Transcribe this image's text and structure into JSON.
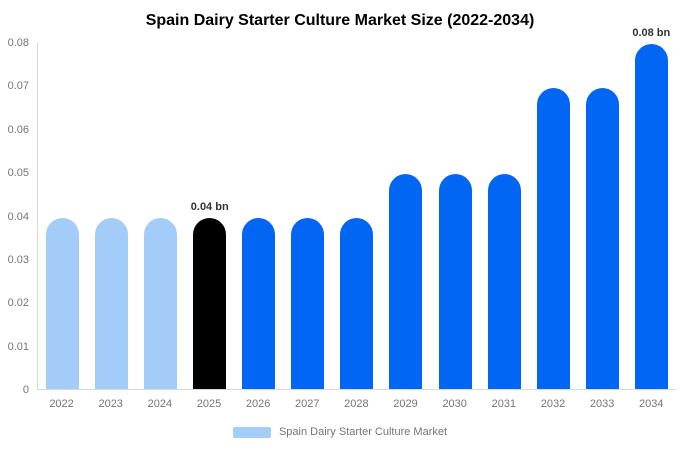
{
  "chart_data": {
    "type": "bar",
    "title": "Spain Dairy Starter Culture Market Size (2022-2034)",
    "categories": [
      "2022",
      "2023",
      "2024",
      "2025",
      "2026",
      "2027",
      "2028",
      "2029",
      "2030",
      "2031",
      "2032",
      "2033",
      "2034"
    ],
    "values": [
      0.0395,
      0.0395,
      0.0395,
      0.0395,
      0.0395,
      0.0395,
      0.0395,
      0.0495,
      0.0495,
      0.0495,
      0.0695,
      0.0695,
      0.0795
    ],
    "bar_colors": [
      "#a3cdf8",
      "#a3cdf8",
      "#a3cdf8",
      "#000000",
      "#0266f5",
      "#0266f5",
      "#0266f5",
      "#0266f5",
      "#0266f5",
      "#0266f5",
      "#0266f5",
      "#0266f5",
      "#0266f5"
    ],
    "point_labels": [
      null,
      null,
      null,
      "0.04 bn",
      null,
      null,
      null,
      null,
      null,
      null,
      null,
      null,
      "0.08 bn"
    ],
    "xlabel": "",
    "ylabel": "",
    "ylim": [
      0,
      0.08
    ],
    "yticks": [
      {
        "value": 0,
        "label": "0"
      },
      {
        "value": 0.01,
        "label": "0.01"
      },
      {
        "value": 0.02,
        "label": "0.02"
      },
      {
        "value": 0.03,
        "label": "0.03"
      },
      {
        "value": 0.04,
        "label": "0.04"
      },
      {
        "value": 0.05,
        "label": "0.05"
      },
      {
        "value": 0.06,
        "label": "0.06"
      },
      {
        "value": 0.07,
        "label": "0.07"
      },
      {
        "value": 0.08,
        "label": "0.08"
      }
    ],
    "grid": false,
    "legend": {
      "position": "bottom",
      "label": "Spain Dairy Starter Culture Market",
      "swatch_color": "#a3cdf8"
    },
    "colors": {
      "bar_light_blue": "#a3cdf8",
      "bar_highlight_black": "#000000",
      "bar_forecast_blue": "#0266f5",
      "axis_line": "#d9d9d9",
      "tick_text": "#757575",
      "data_label_text": "#333333",
      "title_text": "#000000",
      "background": "#ffffff"
    }
  }
}
